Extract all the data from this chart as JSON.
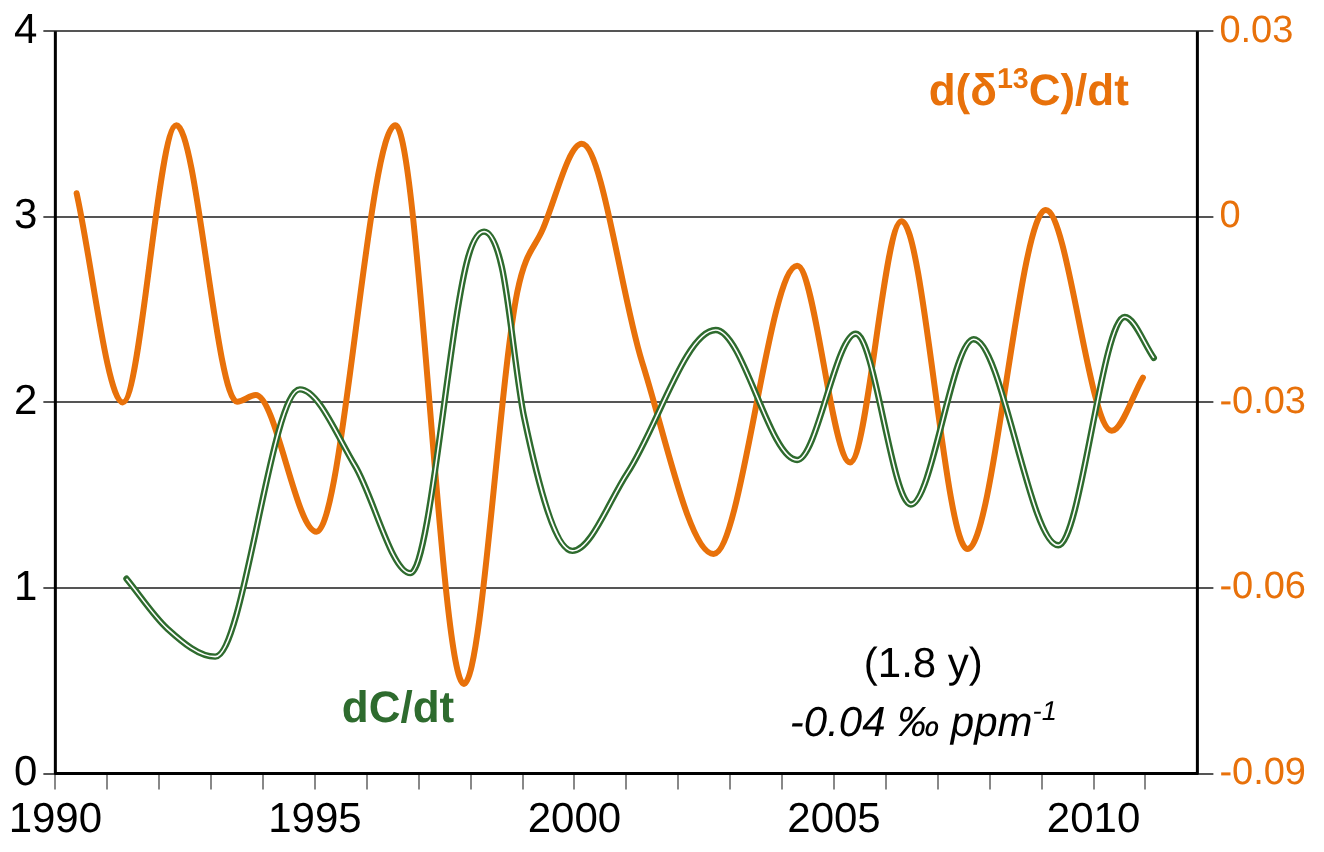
{
  "chart_data": {
    "type": "line",
    "xlim": [
      1990,
      2012
    ],
    "xticks": [
      1990,
      {
        "value": 1991,
        "label": null
      },
      {
        "value": 1992,
        "label": null
      },
      {
        "value": 1993,
        "label": null
      },
      {
        "value": 1994,
        "label": null
      },
      1995,
      {
        "value": 1996,
        "label": null
      },
      {
        "value": 1997,
        "label": null
      },
      {
        "value": 1998,
        "label": null
      },
      {
        "value": 1999,
        "label": null
      },
      2000,
      {
        "value": 2001,
        "label": null
      },
      {
        "value": 2002,
        "label": null
      },
      {
        "value": 2003,
        "label": null
      },
      {
        "value": 2004,
        "label": null
      },
      2005,
      {
        "value": 2006,
        "label": null
      },
      {
        "value": 2007,
        "label": null
      },
      {
        "value": 2008,
        "label": null
      },
      {
        "value": 2009,
        "label": null
      },
      2010,
      {
        "value": 2011,
        "label": null
      }
    ],
    "ylim": [
      0,
      4
    ],
    "yticks": [
      0,
      1,
      2,
      3,
      4
    ],
    "y2lim": [
      -0.09,
      0.03
    ],
    "y2ticks": [
      -0.09,
      -0.06,
      -0.03,
      0,
      0.03
    ],
    "grid": "y",
    "legend": false,
    "marker": "none",
    "line_style": "solid",
    "annotations": [
      "(1.8 y)",
      "-0.04 ‰ ppm$^{-1}$"
    ],
    "series": [
      {
        "name": "dC/dt",
        "color": "#2e6b2e",
        "x": [
          1991.37,
          1992.16,
          1993.08,
          1994.71,
          1995.77,
          1996.84,
          1997.95,
          1998.26,
          1998.6,
          1999.03,
          1999.96,
          2001.02,
          2002.72,
          2004.29,
          2005.42,
          2006.48,
          2007.69,
          2009.32,
          2010.6,
          2011.16
        ],
        "values": [
          1.05,
          0.78,
          0.63,
          2.07,
          1.66,
          1.08,
          2.78,
          2.92,
          2.73,
          1.92,
          1.2,
          1.62,
          2.39,
          1.69,
          2.37,
          1.45,
          2.34,
          1.23,
          2.46,
          2.24
        ]
      },
      {
        "name": "d(δ$^{13}$C)/dt",
        "color": "#e8710a",
        "axis": "y2",
        "x": [
          1990.41,
          1991.3,
          1992.33,
          1993.5,
          1993.86,
          1995.03,
          1996.55,
          1997.87,
          1998.9,
          1999.39,
          2000.14,
          2001.3,
          2002.68,
          2004.29,
          2005.31,
          2006.3,
          2007.57,
          2009.08,
          2010.35,
          2010.95
        ],
        "values": [
          0.0038,
          -0.03,
          0.0148,
          -0.0299,
          -0.0288,
          -0.0509,
          0.0148,
          -0.0755,
          -0.0121,
          -0.002,
          0.0118,
          -0.0234,
          -0.0545,
          -0.0079,
          -0.0397,
          -0.0007,
          -0.0537,
          0.0011,
          -0.0346,
          -0.026
        ]
      }
    ]
  }
}
